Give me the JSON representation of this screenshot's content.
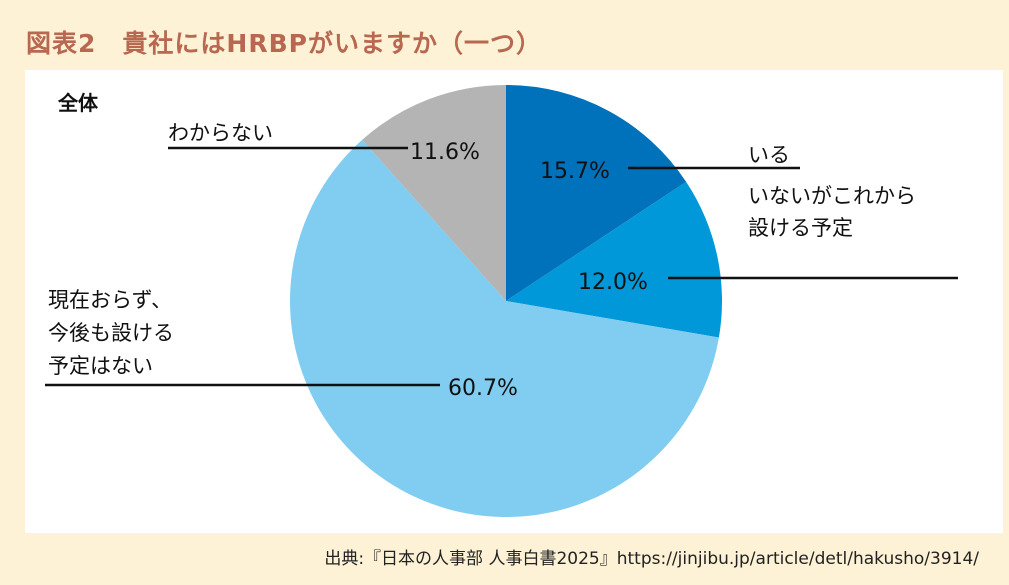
{
  "title": "図表2　貴社にはHRBPがいますか（一つ）",
  "source": "出典:『日本の人事部 人事白書2025』https://jinjibu.jp/article/detl/hakusho/3914/",
  "chart_data": {
    "type": "pie",
    "subtitle": "全体",
    "start": "top",
    "direction": "clockwise",
    "slices": [
      {
        "label": "いる",
        "label_lines": [
          "いる"
        ],
        "value": 15.7,
        "value_label": "15.7%",
        "color": "#0071bb"
      },
      {
        "label": "いないがこれから設ける予定",
        "label_lines": [
          "いないがこれから",
          "設ける予定"
        ],
        "value": 12.0,
        "value_label": "12.0%",
        "color": "#0098d8"
      },
      {
        "label": "現在おらず、今後も設ける予定はない",
        "label_lines": [
          "現在おらず、",
          "今後も設ける",
          "予定はない"
        ],
        "value": 60.7,
        "value_label": "60.7%",
        "color": "#80cdf1"
      },
      {
        "label": "わからない",
        "label_lines": [
          "わからない"
        ],
        "value": 11.6,
        "value_label": "11.6%",
        "color": "#b4b4b4"
      }
    ]
  }
}
